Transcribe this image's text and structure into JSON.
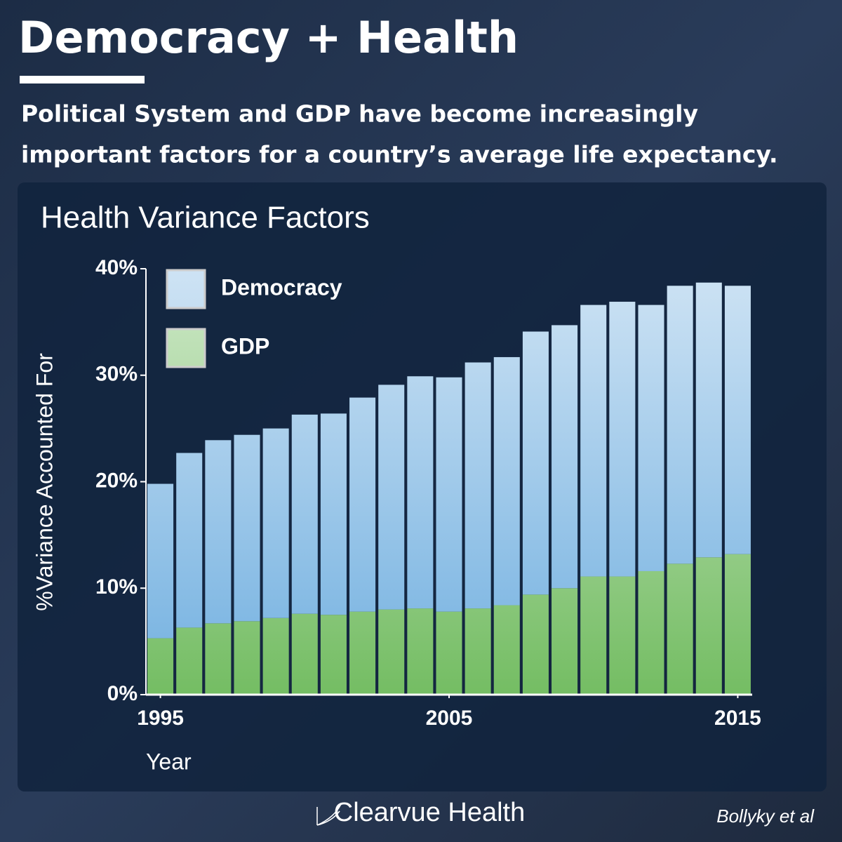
{
  "header": {
    "title": "Democracy + Health",
    "subtitle_lines": [
      "Political System and GDP have become increasingly",
      "important factors for a country’s average life expectancy."
    ]
  },
  "chart_data": {
    "type": "stacked-bar",
    "title": "Health Variance Factors",
    "xlabel": "Year",
    "ylabel": "%Variance Accounted For",
    "x": [
      1995,
      1996,
      1997,
      1998,
      1999,
      2000,
      2001,
      2002,
      2003,
      2004,
      2005,
      2006,
      2007,
      2008,
      2009,
      2010,
      2011,
      2012,
      2013,
      2014,
      2015
    ],
    "xlim": [
      1994.5,
      2015.5
    ],
    "xticks": [
      1995,
      2005,
      2015
    ],
    "ylim": [
      0,
      40
    ],
    "yticks": [
      {
        "value": 0,
        "label": "0%"
      },
      {
        "value": 10,
        "label": "10%"
      },
      {
        "value": 20,
        "label": "20%"
      },
      {
        "value": 30,
        "label": "30%"
      },
      {
        "value": 40,
        "label": "40%"
      }
    ],
    "series": [
      {
        "name": "GDP",
        "color": "#74bd63",
        "values": [
          5.3,
          6.3,
          6.7,
          6.9,
          7.2,
          7.6,
          7.5,
          7.8,
          8.0,
          8.1,
          7.8,
          8.1,
          8.4,
          9.4,
          10.0,
          11.1,
          11.1,
          11.6,
          12.3,
          12.9,
          13.2
        ]
      },
      {
        "name": "Democracy",
        "color": "#72b0e0",
        "values": [
          14.5,
          16.4,
          17.2,
          17.5,
          17.8,
          18.7,
          18.9,
          20.1,
          21.1,
          21.8,
          22.0,
          23.1,
          23.3,
          24.7,
          24.7,
          25.5,
          25.8,
          25.0,
          26.1,
          25.8,
          25.2
        ]
      }
    ]
  },
  "footer": {
    "brand": "Clearvue Health",
    "source": "Bollyky et al"
  }
}
